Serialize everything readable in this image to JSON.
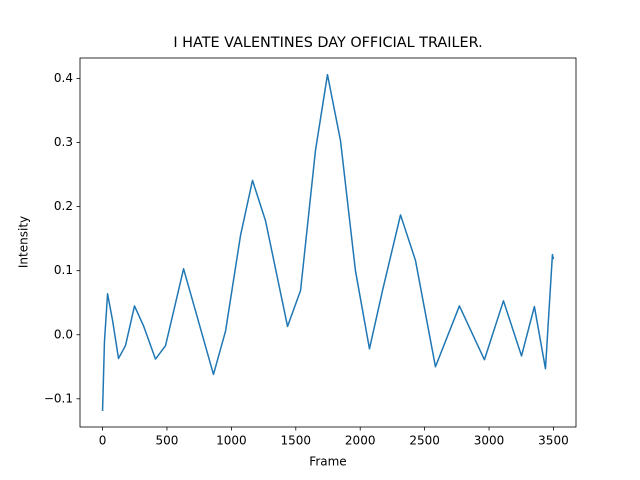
{
  "chart_data": {
    "type": "line",
    "title": "I HATE VALENTINES DAY OFFICIAL TRAILER.",
    "xlabel": "Frame",
    "ylabel": "Intensity",
    "x": [
      0,
      15,
      39,
      78,
      124,
      178,
      248,
      318,
      411,
      489,
      629,
      722,
      861,
      955,
      1071,
      1164,
      1265,
      1436,
      1537,
      1653,
      1746,
      1847,
      1963,
      2072,
      2173,
      2313,
      2429,
      2584,
      2770,
      2964,
      3112,
      3252,
      3352,
      3438,
      3492,
      3500
    ],
    "values": [
      -0.119,
      -0.01,
      0.064,
      0.022,
      -0.037,
      -0.017,
      0.045,
      0.014,
      -0.038,
      -0.017,
      0.103,
      0.037,
      -0.062,
      0.006,
      0.155,
      0.241,
      0.178,
      0.013,
      0.069,
      0.288,
      0.406,
      0.303,
      0.1,
      -0.022,
      0.069,
      0.187,
      0.116,
      -0.05,
      0.045,
      -0.039,
      0.053,
      -0.033,
      0.044,
      -0.053,
      0.125,
      0.118
    ],
    "color": "#1f77b4",
    "xlim": [
      -175,
      3675
    ],
    "xticks": [
      0,
      500,
      1000,
      1500,
      2000,
      2500,
      3000,
      3500
    ],
    "ylim": [
      -0.144,
      0.432
    ],
    "yticks": [
      {
        "value": -0.1,
        "label": "−0.1"
      },
      {
        "value": 0,
        "label": "0.0"
      },
      0.1,
      0.2,
      0.3,
      0.4
    ]
  }
}
